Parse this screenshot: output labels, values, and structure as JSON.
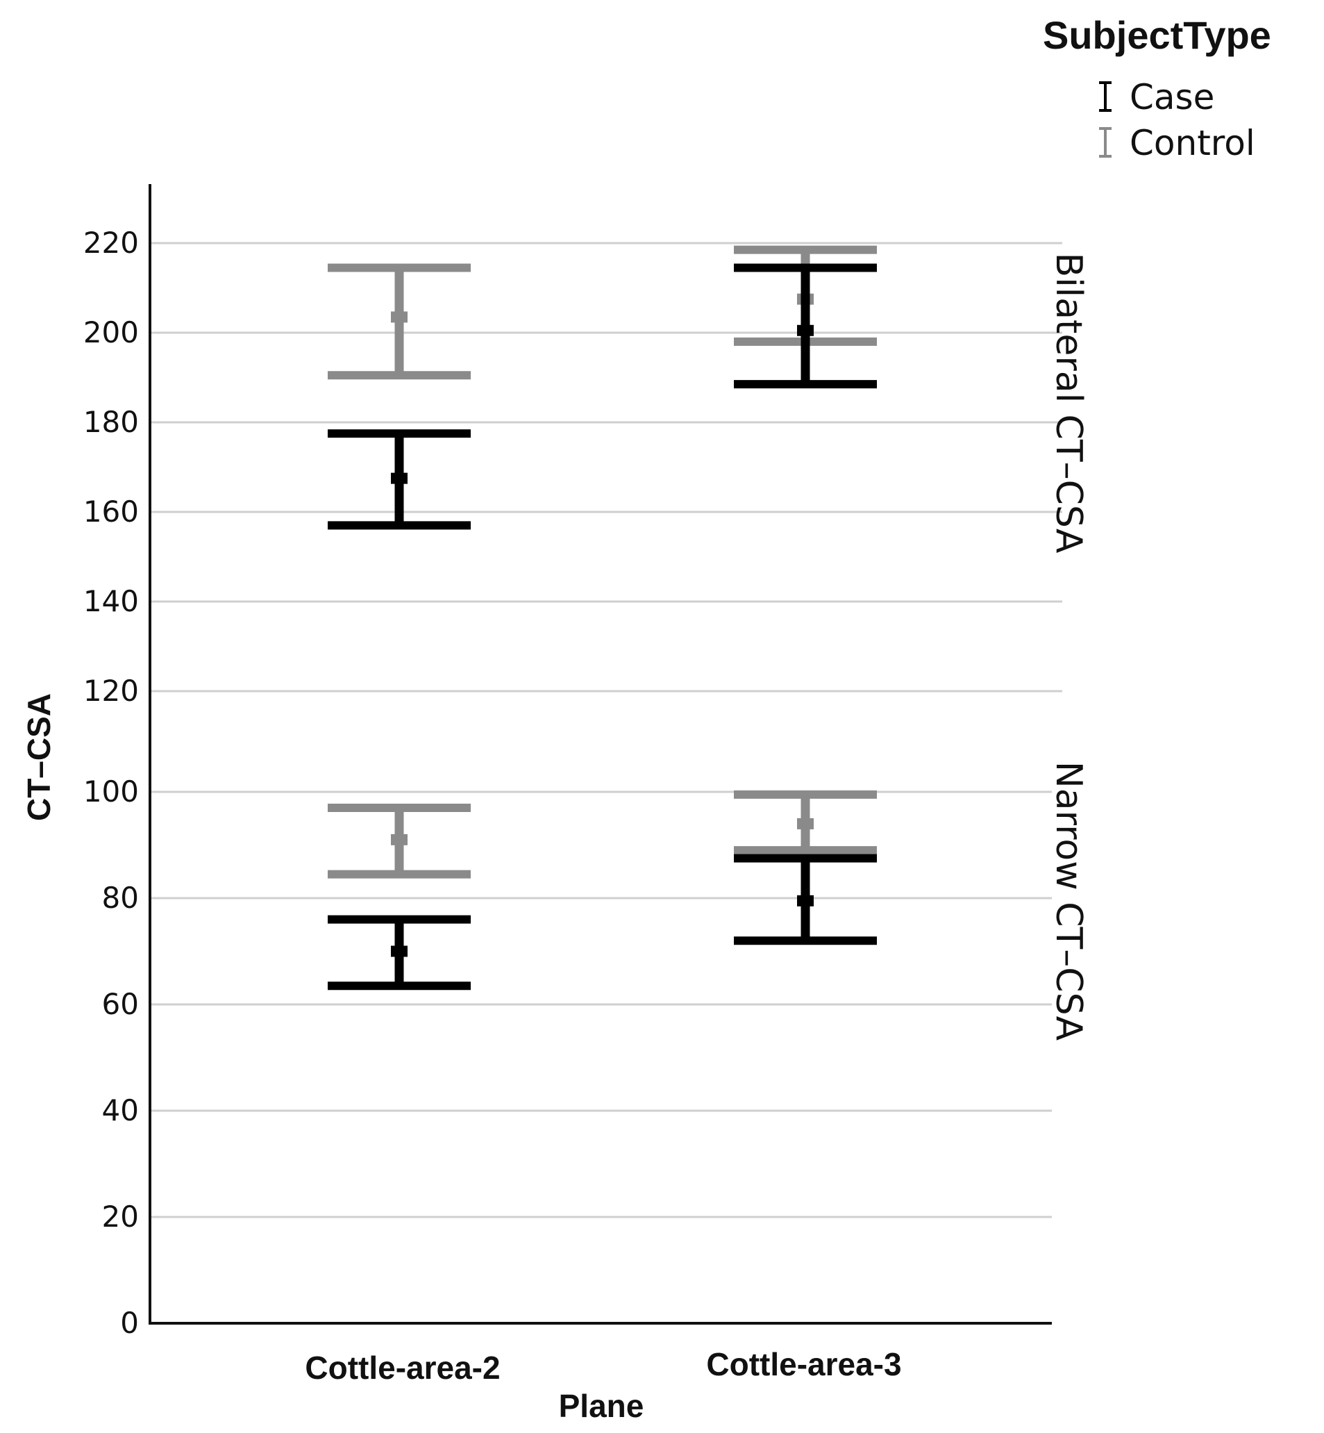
{
  "chart_data": {
    "type": "errorbar",
    "xlabel": "Plane",
    "ylabel": "CT–CSA",
    "categories": [
      "Cottle-area-2",
      "Cottle-area-3"
    ],
    "legend": {
      "title": "SubjectType",
      "placement": "top-right",
      "entries": [
        {
          "name": "Case",
          "color": "#000000"
        },
        {
          "name": "Control",
          "color": "#8a8a8a"
        }
      ]
    },
    "panels": [
      {
        "label": "Bilateral CT–CSA",
        "ylim": [
          110,
          230
        ],
        "ticks": [
          120,
          140,
          160,
          180,
          200,
          220
        ],
        "series": [
          {
            "name": "Case",
            "color": "#000000",
            "mean": [
              167.5,
              200.5
            ],
            "lower": [
              157,
              188.5
            ],
            "upper": [
              177.5,
              214.5
            ]
          },
          {
            "name": "Control",
            "color": "#8a8a8a",
            "mean": [
              203.5,
              207.5
            ],
            "lower": [
              190.5,
              198
            ],
            "upper": [
              214.5,
              218.5
            ]
          }
        ]
      },
      {
        "label": "Narrow CT–CSA",
        "ylim": [
          0,
          105
        ],
        "ticks": [
          0,
          20,
          40,
          60,
          80,
          100
        ],
        "series": [
          {
            "name": "Case",
            "color": "#000000",
            "mean": [
              70,
              79.5
            ],
            "lower": [
              63.5,
              72
            ],
            "upper": [
              76,
              87.5
            ]
          },
          {
            "name": "Control",
            "color": "#8a8a8a",
            "mean": [
              91,
              94
            ],
            "lower": [
              84.5,
              89
            ],
            "upper": [
              97,
              99.5
            ]
          }
        ]
      }
    ]
  }
}
